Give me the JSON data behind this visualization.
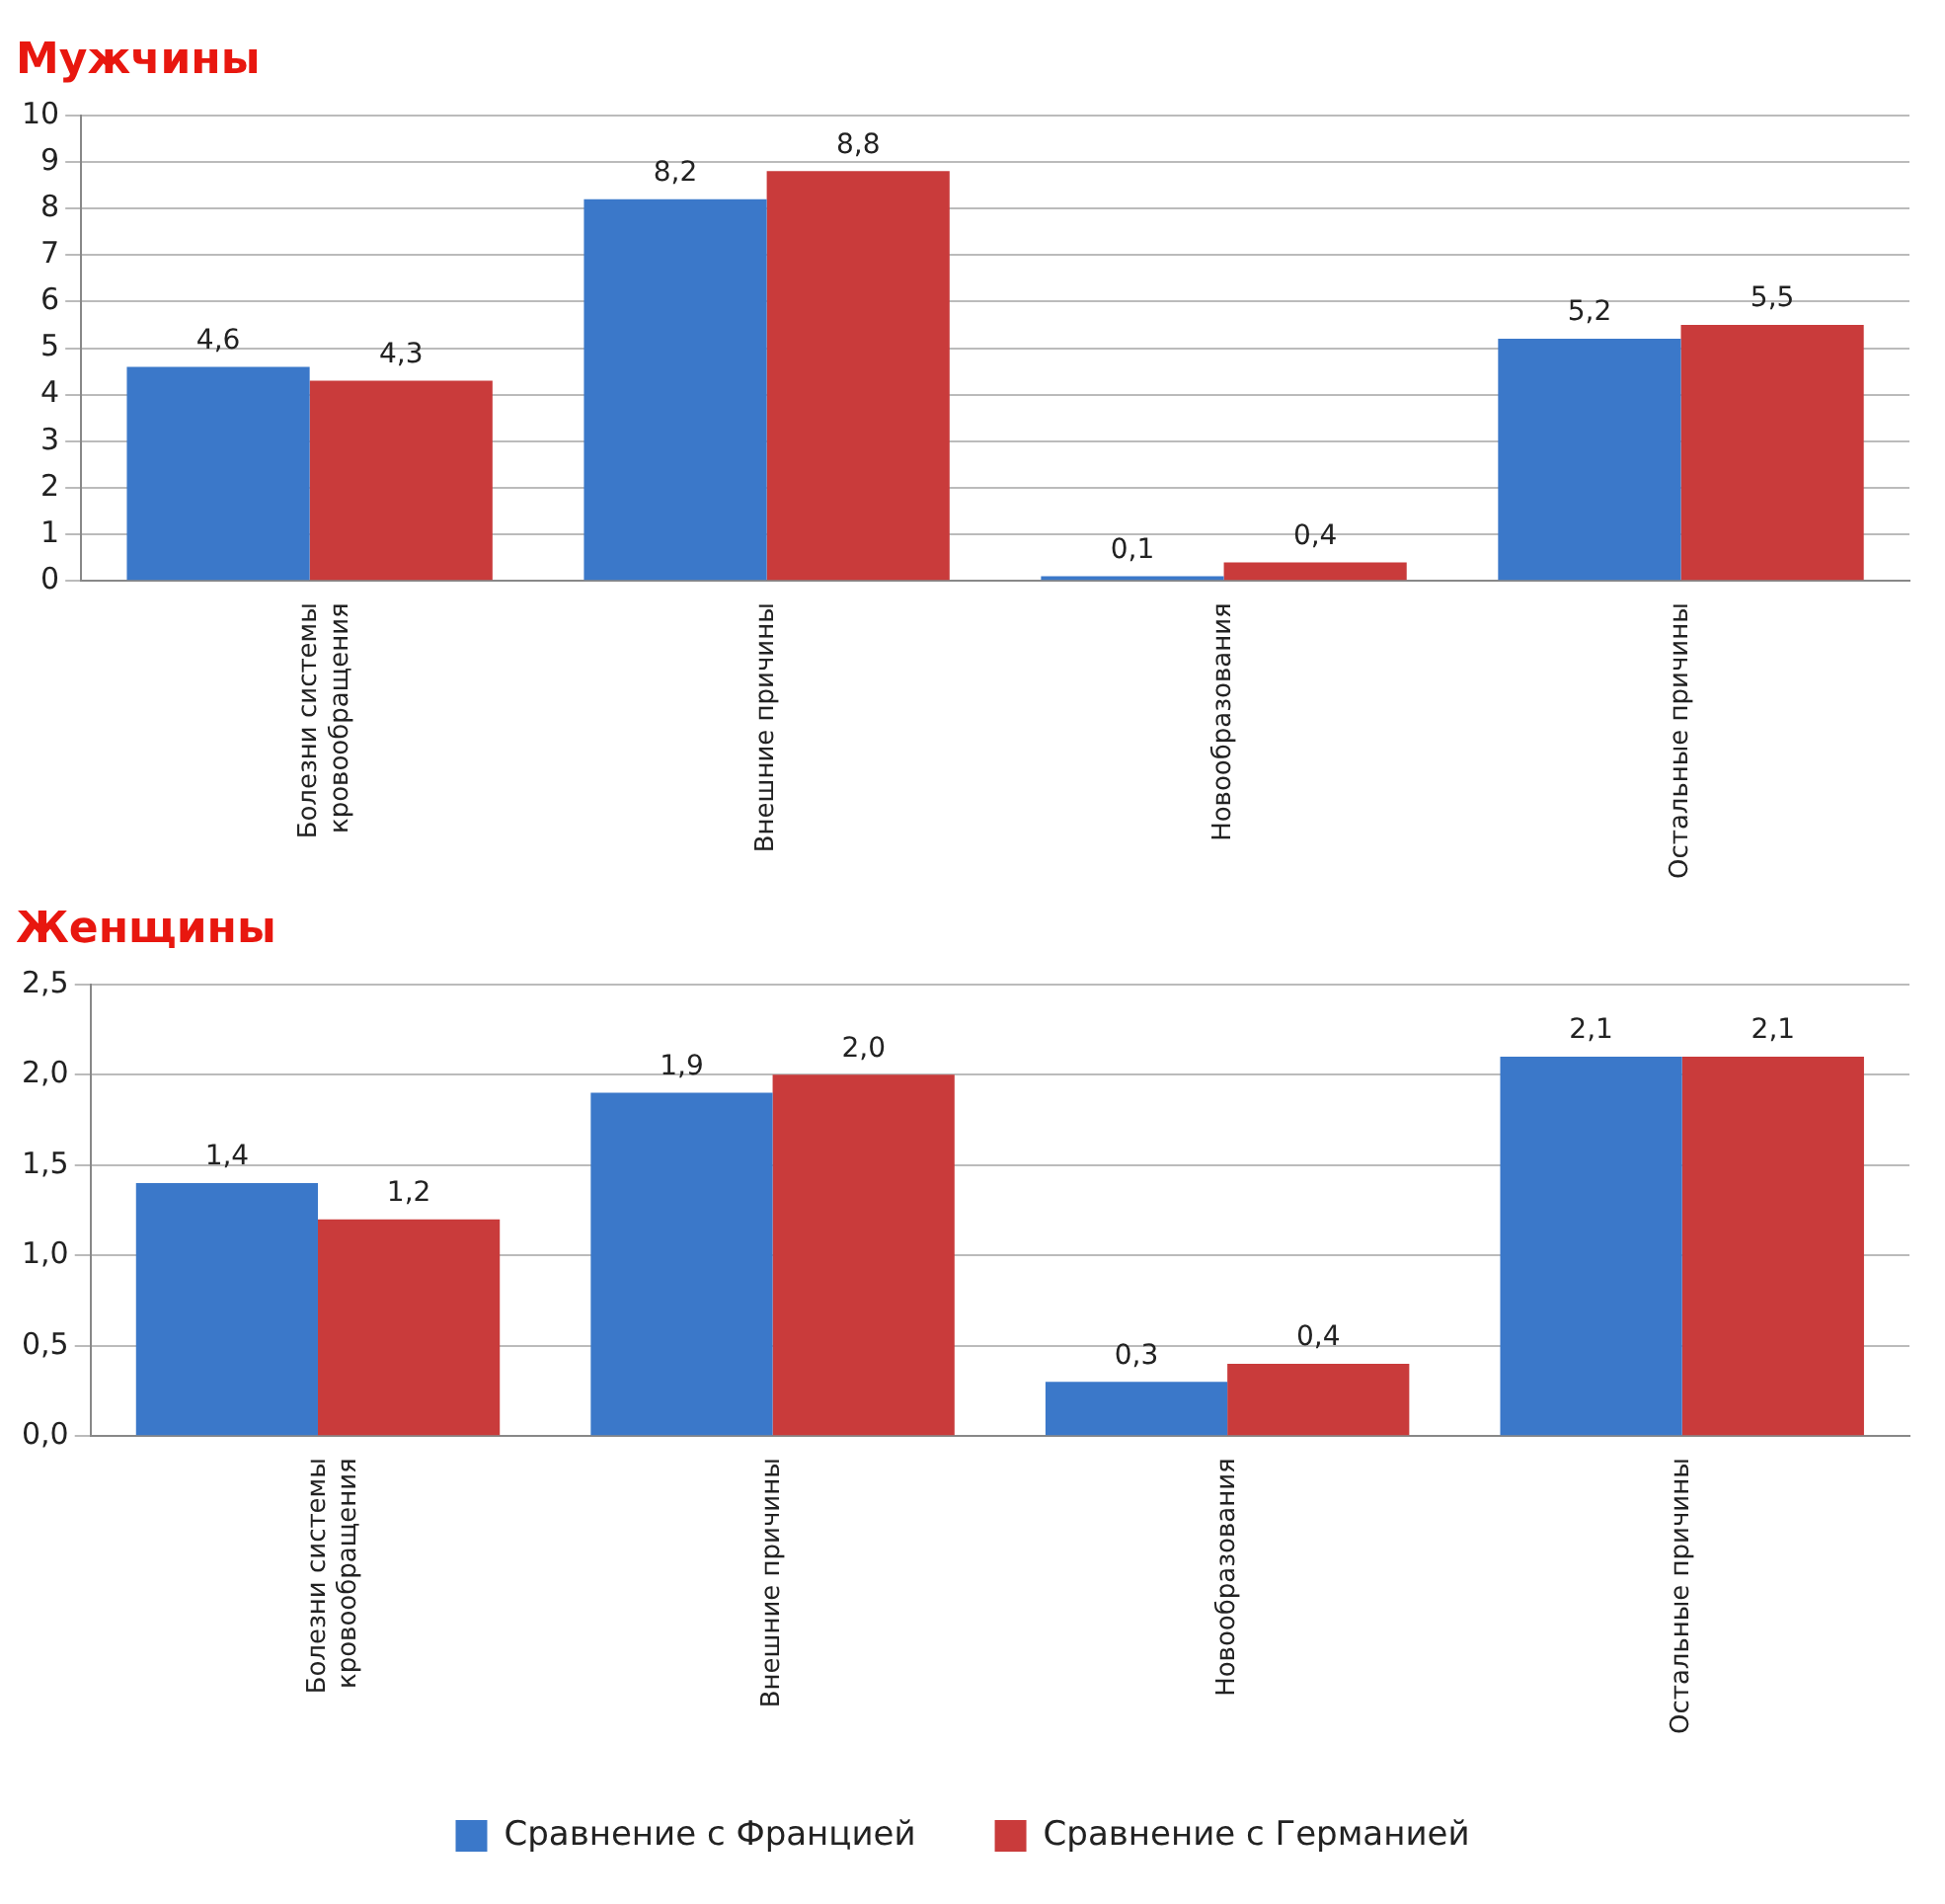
{
  "chart_data": [
    {
      "type": "bar",
      "title": "Мужчины",
      "categories": [
        "Болезни системы кровообращения",
        "Внешние причины",
        "Новообразования",
        "Остальные причины"
      ],
      "series": [
        {
          "color": "#3b78c9",
          "values": [
            4.6,
            8.2,
            0.1,
            5.2
          ],
          "value_labels": [
            "4,6",
            "8,2",
            "0,1",
            "5,2"
          ]
        },
        {
          "color": "#c93b3b",
          "values": [
            4.3,
            8.8,
            0.4,
            5.5
          ],
          "value_labels": [
            "4,3",
            "8,8",
            "0,4",
            "5,5"
          ]
        }
      ],
      "ylim": [
        0,
        10
      ],
      "yticks": [
        0,
        1,
        2,
        3,
        4,
        5,
        6,
        7,
        8,
        9,
        10
      ],
      "grid": "y",
      "legend": false
    },
    {
      "type": "bar",
      "title": "Женщины",
      "categories": [
        "Болезни системы кровообращения",
        "Внешние причины",
        "Новообразования",
        "Остальные причины"
      ],
      "series": [
        {
          "name": "Сравнение с Францией",
          "color": "#3b78c9",
          "values": [
            1.4,
            1.9,
            0.3,
            2.1
          ],
          "value_labels": [
            "1,4",
            "1,9",
            "0,3",
            "2,1"
          ]
        },
        {
          "name": "Сравнение с Германией",
          "color": "#c93b3b",
          "values": [
            1.2,
            2.0,
            0.4,
            2.1
          ],
          "value_labels": [
            "1,2",
            "2,0",
            "0,4",
            "2,1"
          ]
        }
      ],
      "ylim": [
        0,
        2.5
      ],
      "yticks": [
        {
          "value": 0,
          "label": "0,0"
        },
        {
          "value": 0.5,
          "label": "0,5"
        },
        {
          "value": 1,
          "label": "1,0"
        },
        {
          "value": 1.5,
          "label": "1,5"
        },
        {
          "value": 2,
          "label": "2,0"
        },
        {
          "value": 2.5,
          "label": "2,5"
        }
      ],
      "grid": "y",
      "legend": "bottom"
    }
  ]
}
